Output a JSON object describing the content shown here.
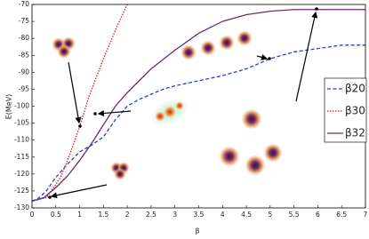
{
  "chart_data": {
    "type": "line",
    "y_label": "E(MeV)",
    "x_label": "β",
    "xlim": [
      0,
      7
    ],
    "ylim": [
      -130,
      -70
    ],
    "xticks": [
      0,
      0.5,
      1,
      1.5,
      2,
      2.5,
      3,
      3.5,
      4,
      4.5,
      5,
      5.5,
      6,
      6.5,
      7
    ],
    "yticks": [
      -130,
      -125,
      -120,
      -115,
      -110,
      -105,
      -100,
      -95,
      -90,
      -85,
      -80,
      -75,
      -70
    ],
    "legend": "right",
    "series": [
      {
        "name": "β20",
        "color": "#2a3fd0",
        "dash": "dashed",
        "x": [
          0,
          0.15,
          0.3,
          0.5,
          0.75,
          1,
          1.25,
          1.5,
          1.75,
          2,
          2.25,
          2.5,
          2.75,
          3,
          3.5,
          4,
          4.5,
          5,
          5.5,
          6,
          6.5,
          7
        ],
        "values": [
          -128,
          -127,
          -125,
          -121,
          -117,
          -113.5,
          -111.5,
          -109,
          -104,
          -100,
          -98,
          -96.5,
          -95,
          -94,
          -92.5,
          -91,
          -89,
          -86,
          -84,
          -83,
          -82,
          -82
        ]
      },
      {
        "name": "β30",
        "color": "#e01818",
        "dash": "dotted",
        "x": [
          0,
          0.3,
          0.6,
          0.8,
          1,
          1.2,
          1.5,
          1.8,
          2.0
        ],
        "values": [
          -128,
          -127,
          -121,
          -114,
          -106,
          -97,
          -86,
          -76,
          -70
        ]
      },
      {
        "name": "β32",
        "color": "#6a2a7a",
        "dash": "solid",
        "x": [
          0,
          0.25,
          0.5,
          0.75,
          1,
          1.25,
          1.5,
          1.75,
          2,
          2.5,
          3,
          3.5,
          4,
          4.5,
          5,
          5.5,
          6,
          6.5,
          7
        ],
        "values": [
          -128,
          -127,
          -124,
          -120.5,
          -116,
          -111,
          -105.5,
          -100,
          -96,
          -89,
          -83.5,
          -78.5,
          -75,
          -73,
          -72,
          -71.5,
          -71.5,
          -71.5,
          -71.5
        ]
      }
    ]
  }
}
